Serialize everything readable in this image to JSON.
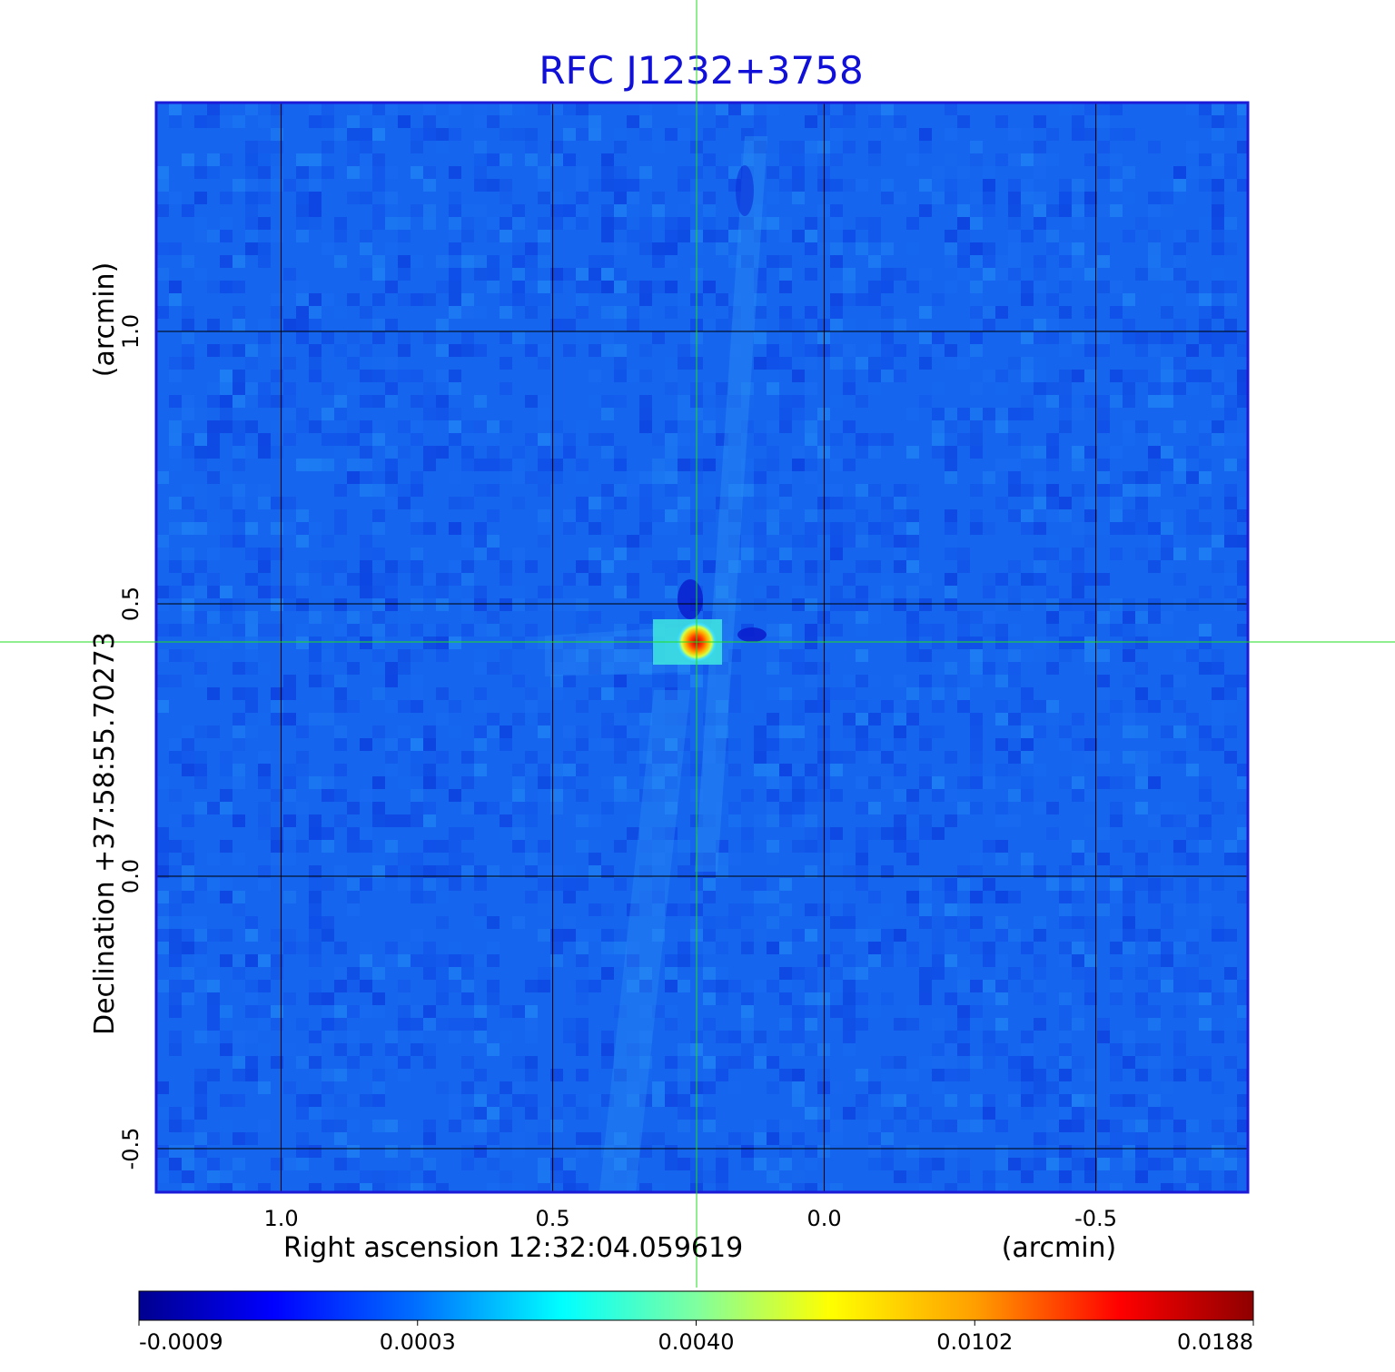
{
  "chart_data": {
    "type": "heatmap",
    "title": "RFC J1232+3758",
    "xlabel": "Right ascension  12:32:04.059619",
    "xunit": "(arcmin)",
    "ylabel": "Declination  +37:58:55.70273",
    "yunit": "(arcmin)",
    "x_ticks": [
      "1.0",
      "0.5",
      "0.0",
      "-0.5"
    ],
    "y_ticks": [
      "1.0",
      "0.5",
      "0.0",
      "-0.5"
    ],
    "x_tick_values": [
      1.0,
      0.5,
      0.0,
      -0.5
    ],
    "y_tick_values": [
      1.0,
      0.5,
      0.0,
      -0.5
    ],
    "xlim": [
      1.23,
      -0.78
    ],
    "ylim": [
      -0.58,
      1.42
    ],
    "grid": true,
    "crosshair": {
      "x": 0.235,
      "y": 0.43
    },
    "colorbar": {
      "tick_labels": [
        "-0.0009",
        "0.0003",
        "0.0040",
        "0.0102",
        "0.0188"
      ],
      "tick_values": [
        -0.0009,
        0.0003,
        0.004,
        0.0102,
        0.0188
      ],
      "colormap": "jet"
    },
    "peak": {
      "x": 0.235,
      "y": 0.43,
      "value": 0.0188
    },
    "colors": {
      "title": "#1010d8",
      "frame": "#1a1ad8",
      "crosshair": "#22dd22",
      "grid": "#000000"
    }
  }
}
